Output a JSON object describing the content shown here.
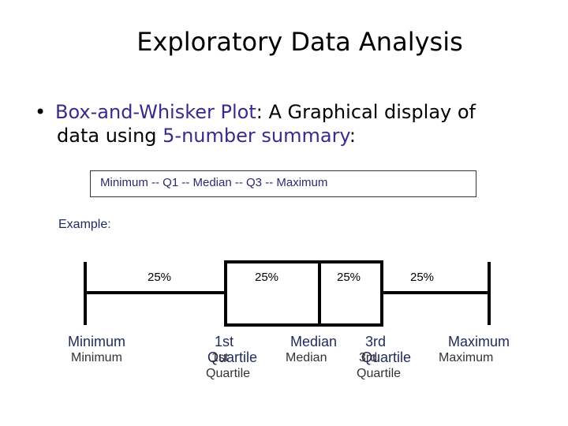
{
  "slide": {
    "title": "Exploratory Data Analysis",
    "bullet": {
      "term": "Box-and-Whisker Plot",
      "text1": ": A Graphical display of",
      "text2_pre": "data using ",
      "term2": "5-number summary",
      "text2_post": ":"
    },
    "summary_box": "Minimum -- Q1 -- Median -- Q3 -- Maximum",
    "example_label": "Example",
    "example_colon": ":"
  },
  "diagram": {
    "percent_labels": [
      "25%",
      "25%",
      "25%",
      "25%"
    ],
    "labels_primary": {
      "minimum": "Minimum",
      "q1_line1": "1st",
      "q1_line2": "Quartile",
      "median": "Median",
      "q3_line1": "3rd",
      "q3_line2": "Quartile",
      "maximum": "Maximum"
    },
    "labels_secondary": {
      "minimum": "Minimum",
      "q1_line1": "1st",
      "q1_line2": "Quartile",
      "median": "Median",
      "q3_line1": "3rd",
      "q3_line2": "Quartile",
      "maximum": "Maximum"
    },
    "colors": {
      "accent": "#3b2a8c",
      "label_dark": "#1f2a5c",
      "line": "#000000"
    }
  }
}
